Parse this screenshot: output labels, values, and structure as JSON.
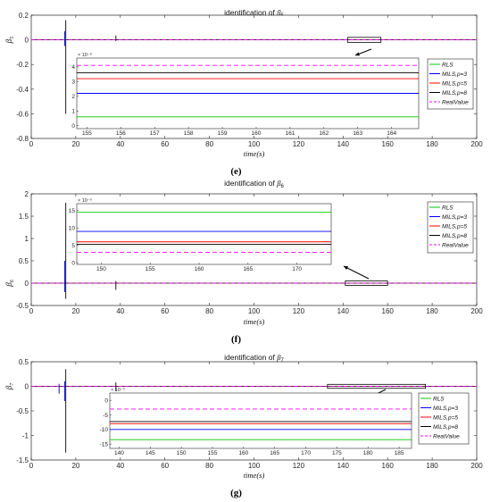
{
  "chart_data": [
    {
      "type": "line",
      "title_prefix": "identification of ",
      "title_symbol": "β",
      "title_sub": "5",
      "ylabel_symbol": "β",
      "ylabel_sub": "5",
      "xlabel": "time(s)",
      "caption": "(e)",
      "xlim": [
        0,
        200
      ],
      "ylim": [
        -0.8,
        0.2
      ],
      "xticks": [
        "0",
        "20",
        "40",
        "60",
        "80",
        "100",
        "120",
        "140",
        "160",
        "180",
        "200"
      ],
      "yticks": [
        "0.2",
        "0",
        "-0.2",
        "-0.4",
        "-0.6",
        "-0.8"
      ],
      "spikes": [
        {
          "x": 15.5,
          "ymin": -0.6,
          "ymax": 0.16,
          "color": "#000000"
        },
        {
          "x": 15.0,
          "ymin": -0.05,
          "ymax": 0.07,
          "color": "#0000cc"
        },
        {
          "x": 38.0,
          "ymin": -0.01,
          "ymax": 0.035,
          "color": "#000000"
        }
      ],
      "baseline": 0,
      "zoom_region": {
        "x": [
          142,
          157
        ],
        "y": [
          -0.02,
          0.02
        ]
      },
      "inset": {
        "xlim": [
          154.7,
          164.8
        ],
        "ylim": [
          -0.2,
          4.6
        ],
        "xticks": [
          "155",
          "156",
          "157",
          "158",
          "159",
          "160",
          "161",
          "162",
          "163",
          "164"
        ],
        "yticks": [
          "4",
          "3",
          "2",
          "1",
          "0"
        ],
        "exponent": "× 10⁻³"
      },
      "series": [
        {
          "name": "RLS",
          "color": "#00cc00",
          "dash": "",
          "value": 0.6
        },
        {
          "name": "MILS,p=3",
          "color": "#0000ff",
          "dash": "",
          "value": 2.2
        },
        {
          "name": "MILS,p=5",
          "color": "#ff0000",
          "dash": "",
          "value": 3.2
        },
        {
          "name": "MILS,p=8",
          "color": "#000000",
          "dash": "",
          "value": 3.6
        },
        {
          "name": "RealValue",
          "color": "#ff00ff",
          "dash": "5,3",
          "value": 4.1
        }
      ]
    },
    {
      "type": "line",
      "title_prefix": "identification of ",
      "title_symbol": "β",
      "title_sub": "6",
      "ylabel_symbol": "β",
      "ylabel_sub": "6",
      "xlabel": "time(s)",
      "caption": "(f)",
      "xlim": [
        0,
        200
      ],
      "ylim": [
        -0.5,
        2
      ],
      "xticks": [
        "0",
        "20",
        "40",
        "60",
        "80",
        "100",
        "120",
        "140",
        "160",
        "180",
        "200"
      ],
      "yticks": [
        "2",
        "1.5",
        "1",
        "0.5",
        "0",
        "-0.5"
      ],
      "spikes": [
        {
          "x": 15.5,
          "ymin": -0.35,
          "ymax": 1.8,
          "color": "#000000"
        },
        {
          "x": 15.0,
          "ymin": -0.2,
          "ymax": 0.5,
          "color": "#0000cc"
        },
        {
          "x": 38.0,
          "ymin": -0.15,
          "ymax": 0.05,
          "color": "#000000"
        }
      ],
      "baseline": 0,
      "zoom_region": {
        "x": [
          141,
          160
        ],
        "y": [
          -0.05,
          0.05
        ]
      },
      "inset": {
        "xlim": [
          147.5,
          173.5
        ],
        "ylim": [
          -0.5,
          17
        ],
        "xticks": [
          "150",
          "155",
          "160",
          "165",
          "170"
        ],
        "yticks": [
          "15",
          "10",
          "5",
          "0"
        ],
        "exponent": "× 10⁻³"
      },
      "series": [
        {
          "name": "RLS",
          "color": "#00cc00",
          "dash": "",
          "value": 14.5
        },
        {
          "name": "MILS,p=3",
          "color": "#0000ff",
          "dash": "",
          "value": 9
        },
        {
          "name": "MILS,p=5",
          "color": "#ff0000",
          "dash": "",
          "value": 6
        },
        {
          "name": "MILS,p=8",
          "color": "#000000",
          "dash": "",
          "value": 5.3
        },
        {
          "name": "RealValue",
          "color": "#ff00ff",
          "dash": "5,3",
          "value": 3
        }
      ]
    },
    {
      "type": "line",
      "title_prefix": "identification of ",
      "title_symbol": "β",
      "title_sub": "7",
      "ylabel_symbol": "β",
      "ylabel_sub": "7",
      "xlabel": "time(s)",
      "caption": "(g)",
      "xlim": [
        0,
        200
      ],
      "ylim": [
        -1.5,
        0.5
      ],
      "xticks": [
        "0",
        "20",
        "40",
        "60",
        "80",
        "100",
        "120",
        "140",
        "160",
        "180",
        "200"
      ],
      "yticks": [
        "0.5",
        "0",
        "-0.5",
        "-1",
        "-1.5"
      ],
      "spikes": [
        {
          "x": 15.5,
          "ymin": -1.35,
          "ymax": 0.35,
          "color": "#000000"
        },
        {
          "x": 15.0,
          "ymin": -0.3,
          "ymax": 0.1,
          "color": "#0000cc"
        },
        {
          "x": 12.5,
          "ymin": -0.15,
          "ymax": 0.05,
          "color": "#0000cc"
        },
        {
          "x": 38.0,
          "ymin": -0.1,
          "ymax": 0.08,
          "color": "#000000"
        }
      ],
      "baseline": 0,
      "zoom_region": {
        "x": [
          133,
          177
        ],
        "y": [
          -0.04,
          0.04
        ]
      },
      "inset": {
        "xlim": [
          138.5,
          187
        ],
        "ylim": [
          -16.5,
          2.5
        ],
        "xticks": [
          "140",
          "145",
          "150",
          "155",
          "160",
          "165",
          "170",
          "175",
          "180",
          "185"
        ],
        "yticks": [
          "0",
          "-5",
          "-10",
          "-15"
        ],
        "exponent": "× 10⁻³"
      },
      "series": [
        {
          "name": "RLS",
          "color": "#00cc00",
          "dash": "",
          "value": -13.5
        },
        {
          "name": "MILS,p=3",
          "color": "#0000ff",
          "dash": "",
          "value": -10
        },
        {
          "name": "MILS,p=5",
          "color": "#ff0000",
          "dash": "",
          "value": -8
        },
        {
          "name": "MILS,p=8",
          "color": "#000000",
          "dash": "",
          "value": -7.3
        },
        {
          "name": "RealValue",
          "color": "#ff00ff",
          "dash": "5,3",
          "value": -3
        }
      ]
    }
  ]
}
